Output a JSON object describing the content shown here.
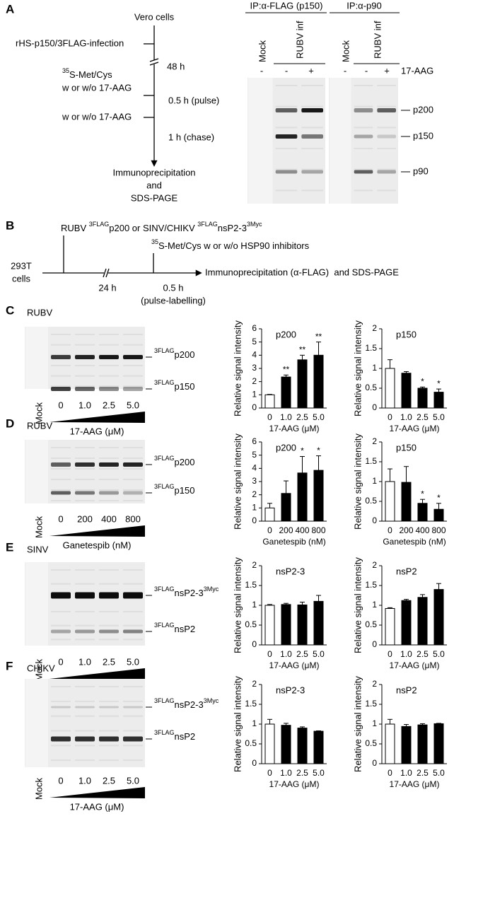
{
  "panel_a": {
    "letter": "A",
    "diagram": {
      "start": "Vero cells",
      "infection": "rHS-p150/3FLAG-infection",
      "interval": "48 h",
      "label_step": [
        {
          "text": "35",
          "sup": true
        },
        {
          "text": "S-Met/Cys"
        }
      ],
      "treatment_1": "w or w/o 17-AAG",
      "pulse": "0.5 h (pulse)",
      "treatment_2": "w or w/o 17-AAG",
      "chase": "1 h (chase)",
      "end": [
        "Immunoprecipitation",
        "and",
        "SDS-PAGE"
      ]
    },
    "gel": {
      "ip_headers": [
        "IP:α-FLAG (p150)",
        "IP:α-p90"
      ],
      "lanes": [
        "Mock",
        "RUBV inf",
        "Mock",
        "RUBV inf"
      ],
      "treatment_signs": [
        "-",
        "-",
        "+",
        "-",
        "-",
        "+"
      ],
      "treatment": "17-AAG",
      "bands": [
        "p200",
        "p150",
        "p90"
      ]
    }
  },
  "panel_b": {
    "letter": "B",
    "construct": [
      {
        "text": "RUBV "
      },
      {
        "text": "3FLAG",
        "sup": true
      },
      {
        "text": "p200 or SINV/CHIKV "
      },
      {
        "text": "3FLAG",
        "sup": true
      },
      {
        "text": "nsP2-3"
      },
      {
        "text": "3Myc",
        "sup": true
      }
    ],
    "treatment": [
      {
        "text": "35",
        "sup": true
      },
      {
        "text": "S-Met/Cys w or w/o HSP90 inhibitors"
      }
    ],
    "cells": [
      "293T",
      "cells"
    ],
    "interval": "24 h",
    "pulse": [
      "0.5 h",
      "(pulse-labelling)"
    ],
    "end": "Immunoprecipitation (α-FLAG)  and SDS-PAGE"
  },
  "gels": [
    {
      "letter": "C",
      "virus": "RUBV",
      "mock": "Mock",
      "lanes": [
        "0",
        "1.0",
        "2.5",
        "5.0"
      ],
      "treatment": "17-AAG (μM)",
      "bands": [
        [
          {
            "text": "3FLAG",
            "sup": true
          },
          {
            "text": "p200"
          }
        ],
        [
          {
            "text": "3FLAG",
            "sup": true
          },
          {
            "text": "p150"
          }
        ]
      ]
    },
    {
      "letter": "D",
      "virus": "RUBV",
      "mock": "Mock",
      "lanes": [
        "0",
        "200",
        "400",
        "800"
      ],
      "treatment": "Ganetespib (nM)",
      "bands": [
        [
          {
            "text": "3FLAG",
            "sup": true
          },
          {
            "text": "p200"
          }
        ],
        [
          {
            "text": "3FLAG",
            "sup": true
          },
          {
            "text": "p150"
          }
        ]
      ]
    },
    {
      "letter": "E",
      "virus": "SINV",
      "mock": "Mock",
      "lanes": [
        "0",
        "1.0",
        "2.5",
        "5.0"
      ],
      "treatment": "17-AAG (μM)",
      "bands": [
        [
          {
            "text": "3FLAG",
            "sup": true
          },
          {
            "text": "nsP2-3"
          },
          {
            "text": "3Myc",
            "sup": true
          }
        ],
        [
          {
            "text": "3FLAG",
            "sup": true
          },
          {
            "text": "nsP2"
          }
        ]
      ]
    },
    {
      "letter": "F",
      "virus": "CHIKV",
      "mock": "Mock",
      "lanes": [
        "0",
        "1.0",
        "2.5",
        "5.0"
      ],
      "treatment": "17-AAG (μM)",
      "bands": [
        [
          {
            "text": "3FLAG",
            "sup": true
          },
          {
            "text": "nsP2-3"
          },
          {
            "text": "3Myc",
            "sup": true
          }
        ],
        [
          {
            "text": "3FLAG",
            "sup": true
          },
          {
            "text": "nsP2"
          }
        ]
      ]
    }
  ],
  "chart_data": [
    {
      "type": "bar",
      "title": "p200",
      "y_label": "Relative signal intensity",
      "x_label": "17-AAG (μM)",
      "categories": [
        "0",
        "1.0",
        "2.5",
        "5.0"
      ],
      "values": [
        1.0,
        2.35,
        3.65,
        4.0
      ],
      "errors": [
        0.03,
        0.15,
        0.35,
        1.0
      ],
      "annotations": [
        null,
        "**",
        "**",
        "**"
      ],
      "colors": [
        "#ffffff",
        "#000000",
        "#000000",
        "#000000"
      ],
      "ylim": [
        0,
        6
      ],
      "yticks": [
        0,
        1,
        2,
        3,
        4,
        5,
        6
      ]
    },
    {
      "type": "bar",
      "title": "p150",
      "y_label": "Relative signal intensity",
      "x_label": "17-AAG (μM)",
      "categories": [
        "0",
        "1.0",
        "2.5",
        "5.0"
      ],
      "values": [
        1.0,
        0.88,
        0.5,
        0.4
      ],
      "errors": [
        0.22,
        0.04,
        0.03,
        0.08
      ],
      "annotations": [
        null,
        null,
        "*",
        "*"
      ],
      "colors": [
        "#ffffff",
        "#000000",
        "#000000",
        "#000000"
      ],
      "ylim": [
        0,
        2
      ],
      "yticks": [
        0,
        0.5,
        1,
        1.5,
        2
      ]
    },
    {
      "type": "bar",
      "title": "p200",
      "y_label": "Relative signal intensity",
      "x_label": "Ganetespib (nM)",
      "categories": [
        "0",
        "200",
        "400",
        "800"
      ],
      "values": [
        1.0,
        2.1,
        3.65,
        3.85
      ],
      "errors": [
        0.35,
        0.95,
        1.25,
        1.1
      ],
      "annotations": [
        null,
        null,
        "*",
        "*"
      ],
      "colors": [
        "#ffffff",
        "#000000",
        "#000000",
        "#000000"
      ],
      "ylim": [
        0,
        6
      ],
      "yticks": [
        0,
        1,
        2,
        3,
        4,
        5,
        6
      ]
    },
    {
      "type": "bar",
      "title": "p150",
      "y_label": "Relative signal intensity",
      "x_label": "Ganetespib (nM)",
      "categories": [
        "0",
        "200",
        "400",
        "800"
      ],
      "values": [
        1.0,
        0.98,
        0.45,
        0.3
      ],
      "errors": [
        0.32,
        0.4,
        0.1,
        0.15
      ],
      "annotations": [
        null,
        null,
        "*",
        "*"
      ],
      "colors": [
        "#ffffff",
        "#000000",
        "#000000",
        "#000000"
      ],
      "ylim": [
        0,
        2
      ],
      "yticks": [
        0,
        0.5,
        1,
        1.5,
        2
      ]
    },
    {
      "type": "bar",
      "title": "nsP2-3",
      "y_label": "Relative signal intensity",
      "x_label": "17-AAG (μM)",
      "categories": [
        "0",
        "1.0",
        "2.5",
        "5.0"
      ],
      "values": [
        1.0,
        1.02,
        1.01,
        1.1
      ],
      "errors": [
        0.02,
        0.03,
        0.07,
        0.15
      ],
      "annotations": [
        null,
        null,
        null,
        null
      ],
      "colors": [
        "#ffffff",
        "#000000",
        "#000000",
        "#000000"
      ],
      "ylim": [
        0,
        2
      ],
      "yticks": [
        0,
        0.5,
        1,
        1.5,
        2
      ]
    },
    {
      "type": "bar",
      "title": "nsP2",
      "y_label": "Relative signal intensity",
      "x_label": "17-AAG (μM)",
      "categories": [
        "0",
        "1.0",
        "2.5",
        "5.0"
      ],
      "values": [
        0.92,
        1.12,
        1.2,
        1.4
      ],
      "errors": [
        0.02,
        0.03,
        0.07,
        0.15
      ],
      "annotations": [
        null,
        null,
        null,
        null
      ],
      "colors": [
        "#ffffff",
        "#000000",
        "#000000",
        "#000000"
      ],
      "ylim": [
        0,
        2
      ],
      "yticks": [
        0,
        0.5,
        1,
        1.5,
        2
      ]
    },
    {
      "type": "bar",
      "title": "nsP2-3",
      "y_label": "Relative signal intensity",
      "x_label": "17-AAG (μM)",
      "categories": [
        "0",
        "1.0",
        "2.5",
        "5.0"
      ],
      "values": [
        1.0,
        0.97,
        0.9,
        0.82
      ],
      "errors": [
        0.12,
        0.05,
        0.03,
        0.01
      ],
      "annotations": [
        null,
        null,
        null,
        null
      ],
      "colors": [
        "#ffffff",
        "#000000",
        "#000000",
        "#000000"
      ],
      "ylim": [
        0,
        2
      ],
      "yticks": [
        0,
        0.5,
        1,
        1.5,
        2
      ]
    },
    {
      "type": "bar",
      "title": "nsP2",
      "y_label": "Relative signal intensity",
      "x_label": "17-AAG (μM)",
      "categories": [
        "0",
        "1.0",
        "2.5",
        "5.0"
      ],
      "values": [
        1.0,
        0.94,
        0.98,
        1.01
      ],
      "errors": [
        0.12,
        0.05,
        0.03,
        0.01
      ],
      "annotations": [
        null,
        null,
        null,
        null
      ],
      "colors": [
        "#ffffff",
        "#000000",
        "#000000",
        "#000000"
      ],
      "ylim": [
        0,
        2
      ],
      "yticks": [
        0,
        0.5,
        1,
        1.5,
        2
      ]
    }
  ]
}
